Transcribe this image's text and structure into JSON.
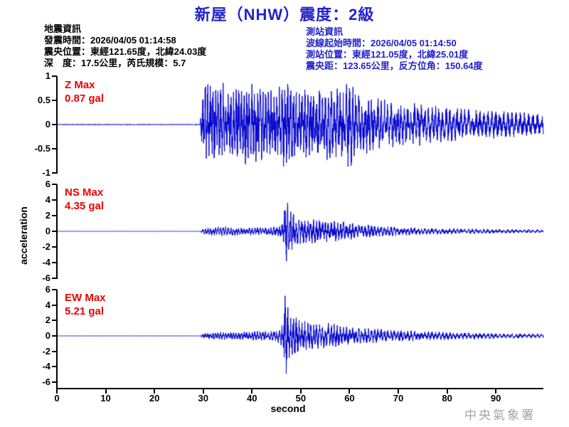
{
  "title": "新屋（NHW）震度：2級",
  "info_left": {
    "heading": "地震資訊",
    "origin_time": "發震時間：2026/04/05 01:14:58",
    "epicenter": "震央位置：東經121.65度，北緯24.03度",
    "depth_magnitude": "深　度：17.5公里，芮氏規模：5.7"
  },
  "info_right": {
    "heading": "測站資訊",
    "wave_start_time": "波線起始時間：2026/04/05 01:14:50",
    "station_location": "測站位置：東經121.05度，北緯25.01度",
    "epicentral_distance": "震央距：123.65公里，反方位角：150.64度"
  },
  "watermark": "中央氣象署",
  "colors": {
    "title_blue": "#2222cc",
    "trace_blue": "#0000cc",
    "max_label_red": "#ee0000",
    "watermark_gray": "#a4a4a4"
  },
  "chart_data": [
    {
      "type": "line",
      "name": "Z",
      "max_label": "Z Max",
      "max_value": "0.87 gal",
      "max": 0.87,
      "unit": "gal",
      "onset_s": 29.5,
      "ylim": [
        -1,
        1
      ],
      "yticks": [
        "1",
        "0.5",
        "0",
        "-0.5",
        "-1"
      ],
      "xlim": [
        0,
        99.6
      ],
      "xticks": [
        0,
        10,
        20,
        30,
        40,
        50,
        60,
        70,
        80,
        90
      ],
      "xlabel": "second",
      "ylabel": "acceleration",
      "seed": 11,
      "envelope": [
        [
          0,
          0.015
        ],
        [
          29.2,
          0.015
        ],
        [
          29.5,
          0.4
        ],
        [
          30.2,
          0.85
        ],
        [
          33,
          1.0
        ],
        [
          35,
          0.72
        ],
        [
          38,
          0.82
        ],
        [
          41,
          0.92
        ],
        [
          43,
          0.72
        ],
        [
          45,
          0.78
        ],
        [
          47,
          0.92
        ],
        [
          49,
          0.72
        ],
        [
          52,
          0.78
        ],
        [
          55,
          0.85
        ],
        [
          57,
          0.72
        ],
        [
          60,
          0.95
        ],
        [
          62,
          0.68
        ],
        [
          65,
          0.58
        ],
        [
          68,
          0.52
        ],
        [
          72,
          0.46
        ],
        [
          76,
          0.42
        ],
        [
          80,
          0.38
        ],
        [
          85,
          0.33
        ],
        [
          90,
          0.3
        ],
        [
          95,
          0.26
        ],
        [
          99.6,
          0.24
        ]
      ]
    },
    {
      "type": "line",
      "name": "NS",
      "max_label": "NS Max",
      "max_value": "4.35 gal",
      "max": 4.35,
      "unit": "gal",
      "onset_s": 29.5,
      "s_arrival_s": 46.7,
      "ylim": [
        -6,
        6
      ],
      "yticks": [
        "6",
        "4",
        "2",
        "0",
        "-2",
        "-4",
        "-6"
      ],
      "xlim": [
        0,
        99.6
      ],
      "xticks": [
        0,
        10,
        20,
        30,
        40,
        50,
        60,
        70,
        80,
        90
      ],
      "xlabel": "second",
      "ylabel": "acceleration",
      "seed": 22,
      "envelope": [
        [
          0,
          0.006
        ],
        [
          29.3,
          0.006
        ],
        [
          29.6,
          0.35
        ],
        [
          31,
          0.5
        ],
        [
          34,
          0.62
        ],
        [
          37,
          0.5
        ],
        [
          40,
          0.56
        ],
        [
          43,
          0.5
        ],
        [
          45.5,
          0.7
        ],
        [
          46.2,
          1.5
        ],
        [
          46.7,
          4.9
        ],
        [
          47.3,
          3.5
        ],
        [
          48,
          2.5
        ],
        [
          49,
          2.0
        ],
        [
          50.5,
          1.7
        ],
        [
          52,
          1.5
        ],
        [
          53.5,
          1.8
        ],
        [
          55,
          1.4
        ],
        [
          57,
          1.5
        ],
        [
          59,
          1.2
        ],
        [
          61,
          1.0
        ],
        [
          64,
          0.85
        ],
        [
          67,
          0.7
        ],
        [
          70,
          0.6
        ],
        [
          74,
          0.5
        ],
        [
          78,
          0.42
        ],
        [
          82,
          0.38
        ],
        [
          86,
          0.33
        ],
        [
          90,
          0.3
        ],
        [
          95,
          0.25
        ],
        [
          99.6,
          0.22
        ]
      ]
    },
    {
      "type": "line",
      "name": "EW",
      "max_label": "EW Max",
      "max_value": "5.21 gal",
      "max": 5.21,
      "unit": "gal",
      "onset_s": 29.5,
      "s_arrival_s": 46.6,
      "ylim": [
        -6,
        6
      ],
      "yticks": [
        "6",
        "4",
        "2",
        "0",
        "-2",
        "-4",
        "-6"
      ],
      "xlim": [
        0,
        99.6
      ],
      "xticks": [
        0,
        10,
        20,
        30,
        40,
        50,
        60,
        70,
        80,
        90
      ],
      "xlabel": "second",
      "ylabel": "acceleration",
      "seed": 33,
      "envelope": [
        [
          0,
          0.006
        ],
        [
          29.3,
          0.006
        ],
        [
          29.6,
          0.3
        ],
        [
          31,
          0.45
        ],
        [
          34,
          0.5
        ],
        [
          37,
          0.56
        ],
        [
          40,
          0.62
        ],
        [
          43,
          0.68
        ],
        [
          45,
          0.8
        ],
        [
          46.1,
          1.6
        ],
        [
          46.6,
          5.9
        ],
        [
          47.2,
          4.2
        ],
        [
          48,
          3.0
        ],
        [
          49,
          2.4
        ],
        [
          50.5,
          2.0
        ],
        [
          52,
          1.8
        ],
        [
          54,
          1.6
        ],
        [
          56,
          1.7
        ],
        [
          58,
          1.4
        ],
        [
          60,
          1.2
        ],
        [
          63,
          1.0
        ],
        [
          66,
          0.9
        ],
        [
          69,
          0.8
        ],
        [
          72,
          0.7
        ],
        [
          76,
          0.6
        ],
        [
          80,
          0.52
        ],
        [
          84,
          0.45
        ],
        [
          88,
          0.4
        ],
        [
          92,
          0.35
        ],
        [
          99.6,
          0.3
        ]
      ]
    }
  ]
}
